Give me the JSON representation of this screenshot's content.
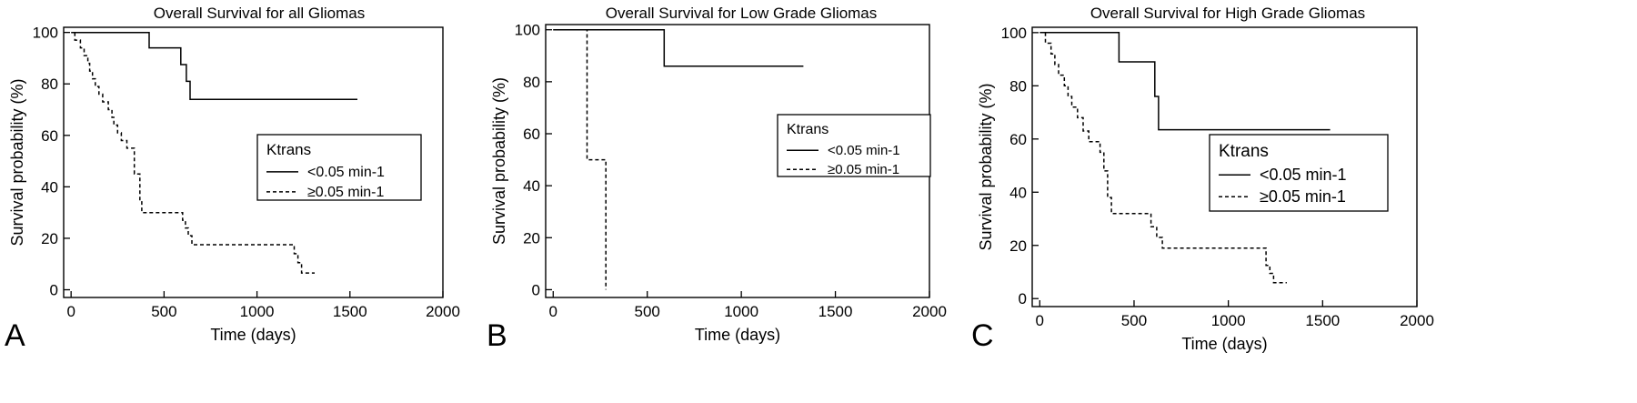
{
  "chart_data": [
    {
      "panel_label": "A",
      "type": "line",
      "title": "Overall Survival for all Gliomas",
      "xlabel": "Time (days)",
      "ylabel": "Survival probability (%)",
      "xlim": [
        -40,
        2000
      ],
      "ylim": [
        -3,
        102
      ],
      "x_ticks": [
        0,
        500,
        1000,
        1500,
        2000
      ],
      "y_ticks": [
        0,
        20,
        40,
        60,
        80,
        100
      ],
      "grid": false,
      "legend_title": "Ktrans",
      "legend_position": "right-center",
      "series": [
        {
          "name": "<0.05 min-1",
          "style": "solid",
          "x": [
            0,
            420,
            420,
            590,
            590,
            620,
            620,
            640,
            640,
            1540
          ],
          "y": [
            100,
            100,
            94,
            94,
            87.5,
            87.5,
            81,
            81,
            74,
            74
          ]
        },
        {
          "name": "≥0.05 min-1",
          "style": "dashed",
          "x": [
            20,
            20,
            50,
            50,
            70,
            70,
            90,
            90,
            100,
            100,
            115,
            115,
            130,
            130,
            150,
            150,
            170,
            170,
            200,
            200,
            220,
            220,
            230,
            230,
            250,
            250,
            270,
            270,
            300,
            300,
            340,
            340,
            370,
            370,
            380,
            380,
            600,
            600,
            615,
            615,
            630,
            630,
            650,
            650,
            1200,
            1200,
            1220,
            1220,
            1240,
            1240,
            1310
          ],
          "y": [
            100,
            97,
            97,
            94,
            94,
            91,
            91,
            88,
            88,
            85,
            85,
            82,
            82,
            79,
            79,
            76,
            76,
            73,
            73,
            70,
            70,
            67,
            67,
            64,
            64,
            61,
            61,
            58,
            58,
            55,
            55,
            45,
            45,
            35,
            35,
            30,
            30,
            27,
            27,
            24,
            24,
            21,
            21,
            17.5,
            17.5,
            14,
            14,
            10.5,
            10.5,
            6.5,
            6.5
          ]
        }
      ]
    },
    {
      "panel_label": "B",
      "type": "line",
      "title": "Overall Survival for Low Grade Gliomas",
      "xlabel": "Time (days)",
      "ylabel": "Survival probability (%)",
      "xlim": [
        -40,
        2000
      ],
      "ylim": [
        -3,
        102
      ],
      "x_ticks": [
        0,
        500,
        1000,
        1500,
        2000
      ],
      "y_ticks": [
        0,
        20,
        40,
        60,
        80,
        100
      ],
      "grid": false,
      "legend_title": "Ktrans",
      "legend_position": "top-right",
      "series": [
        {
          "name": "<0.05 min-1",
          "style": "solid",
          "x": [
            0,
            590,
            590,
            1330
          ],
          "y": [
            100,
            100,
            86,
            86
          ]
        },
        {
          "name": "≥0.05 min-1",
          "style": "dashed",
          "x": [
            0,
            180,
            180,
            280,
            280
          ],
          "y": [
            100,
            100,
            50,
            50,
            0
          ]
        }
      ]
    },
    {
      "panel_label": "C",
      "type": "line",
      "title": "Overall Survival for High Grade Gliomas",
      "xlabel": "Time (days)",
      "ylabel": "Survival probability (%)",
      "xlim": [
        -40,
        2000
      ],
      "ylim": [
        -3,
        102
      ],
      "x_ticks": [
        0,
        500,
        1000,
        1500,
        2000
      ],
      "y_ticks": [
        0,
        20,
        40,
        60,
        80,
        100
      ],
      "grid": false,
      "legend_title": "Ktrans",
      "legend_position": "right-center",
      "series": [
        {
          "name": "<0.05 min-1",
          "style": "solid",
          "x": [
            0,
            420,
            420,
            610,
            610,
            630,
            630,
            1540
          ],
          "y": [
            100,
            100,
            89,
            89,
            76,
            76,
            63.5,
            63.5
          ]
        },
        {
          "name": "≥0.05 min-1",
          "style": "dashed",
          "x": [
            30,
            30,
            60,
            60,
            80,
            80,
            100,
            100,
            130,
            130,
            150,
            150,
            170,
            170,
            200,
            200,
            230,
            230,
            260,
            260,
            320,
            320,
            340,
            340,
            360,
            360,
            380,
            380,
            590,
            590,
            620,
            620,
            650,
            650,
            1200,
            1200,
            1220,
            1220,
            1240,
            1240,
            1310
          ],
          "y": [
            100,
            96,
            96,
            92,
            92,
            88,
            88,
            84,
            84,
            80,
            80,
            76,
            76,
            72,
            72,
            68,
            68,
            63,
            63,
            59,
            59,
            55,
            55,
            48,
            48,
            38,
            38,
            32,
            32,
            27,
            27,
            23,
            23,
            19,
            19,
            12.5,
            12.5,
            9.5,
            9.5,
            6,
            6
          ]
        }
      ]
    }
  ]
}
